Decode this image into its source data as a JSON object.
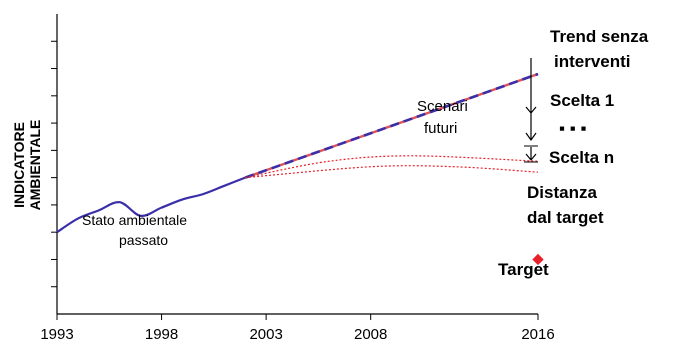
{
  "chart_data": {
    "type": "line",
    "title": "",
    "xlabel": "",
    "ylabel": "INDICATORE AMBIENTALE",
    "x_ticks": [
      "1993",
      "1998",
      "2003",
      "2008",
      "2016"
    ],
    "xlim": [
      1993,
      2016
    ],
    "ylim": [
      0,
      11
    ],
    "y_ticks": [
      1,
      2,
      3,
      4,
      5,
      6,
      7,
      8,
      9,
      10
    ],
    "grid": false,
    "series": [
      {
        "color": "#3a2fa8",
        "style": "solid",
        "points": [
          [
            1993,
            3.0
          ],
          [
            1994,
            3.5
          ],
          [
            1995,
            3.8
          ],
          [
            1996,
            4.1
          ],
          [
            1997,
            3.6
          ],
          [
            1998,
            3.9
          ],
          [
            1999,
            4.2
          ],
          [
            2000,
            4.4
          ],
          [
            2001,
            4.7
          ],
          [
            2002,
            5.0
          ]
        ]
      },
      {
        "color": "#3a2fa8",
        "accent_color": "#e0505a",
        "style": "dashed",
        "points": [
          [
            2002,
            5.0
          ],
          [
            2016,
            8.8
          ]
        ]
      },
      {
        "color": "#e8202a",
        "style": "dotted",
        "points": [
          [
            2002,
            5.0
          ],
          [
            2006,
            5.6
          ],
          [
            2010,
            5.8
          ],
          [
            2016,
            5.6
          ]
        ]
      },
      {
        "color": "#e8202a",
        "style": "dotted",
        "points": [
          [
            2002,
            5.0
          ],
          [
            2008,
            5.4
          ],
          [
            2012,
            5.4
          ],
          [
            2016,
            5.2
          ]
        ]
      },
      {
        "color": "#e8202a",
        "style": "marker",
        "points": [
          [
            2016,
            2.0
          ]
        ]
      }
    ],
    "annotations": {
      "trend_1": "Trend senza",
      "trend_2": "interventi",
      "scelta_1": "Scelta 1",
      "dots": "▪ ▪ ▪",
      "scelta_n": "Scelta n",
      "distanza_1": "Distanza",
      "distanza_2": "dal target",
      "target": "Target",
      "scenari_1": "Scenari",
      "scenari_2": "futuri",
      "stato_1": "Stato ambientale",
      "stato_2": "passato"
    }
  }
}
